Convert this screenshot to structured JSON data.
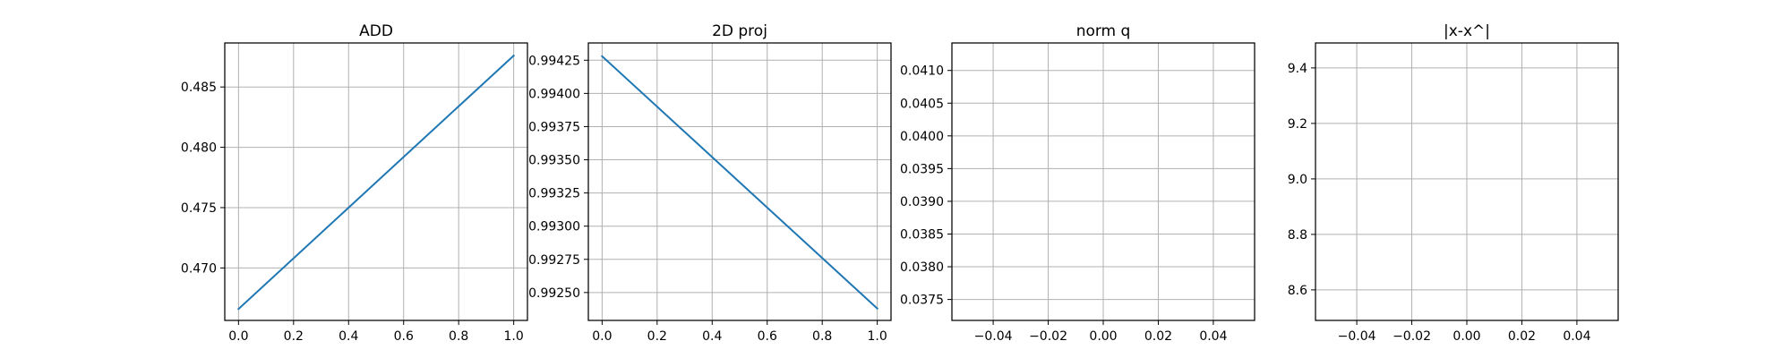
{
  "chart_data": [
    {
      "type": "line",
      "title": "ADD",
      "xlabel": "",
      "ylabel": "",
      "xlim": [
        -0.05,
        1.05
      ],
      "ylim": [
        0.46565,
        0.48865
      ],
      "xticks": [
        "0.0",
        "0.2",
        "0.4",
        "0.6",
        "0.8",
        "1.0"
      ],
      "yticks": [
        "0.470",
        "0.475",
        "0.480",
        "0.485"
      ],
      "grid": true,
      "series": [
        {
          "x": [
            0.0,
            1.0
          ],
          "y": [
            0.4666,
            0.4876
          ],
          "color": "#1f77b4"
        }
      ]
    },
    {
      "type": "line",
      "title": "2D proj",
      "xlabel": "",
      "ylabel": "",
      "xlim": [
        -0.05,
        1.05
      ],
      "ylim": [
        0.99229,
        0.99438
      ],
      "xticks": [
        "0.0",
        "0.2",
        "0.4",
        "0.6",
        "0.8",
        "1.0"
      ],
      "yticks": [
        "0.99250",
        "0.99275",
        "0.99300",
        "0.99325",
        "0.99350",
        "0.99375",
        "0.99400",
        "0.99425"
      ],
      "grid": true,
      "series": [
        {
          "x": [
            0.0,
            1.0
          ],
          "y": [
            0.99428,
            0.99238
          ],
          "color": "#1f77b4"
        }
      ]
    },
    {
      "type": "line",
      "title": "norm q",
      "xlabel": "",
      "ylabel": "",
      "xlim": [
        -0.055,
        0.055
      ],
      "ylim": [
        0.03718,
        0.04142
      ],
      "xticks": [
        "−0.04",
        "−0.02",
        "0.00",
        "0.02",
        "0.04"
      ],
      "yticks": [
        "0.0375",
        "0.0380",
        "0.0385",
        "0.0390",
        "0.0395",
        "0.0400",
        "0.0405",
        "0.0410"
      ],
      "grid": true,
      "series": []
    },
    {
      "type": "line",
      "title": "|x-x^|",
      "xlabel": "",
      "ylabel": "",
      "xlim": [
        -0.055,
        0.055
      ],
      "ylim": [
        8.49,
        9.49
      ],
      "xticks": [
        "−0.04",
        "−0.02",
        "0.00",
        "0.02",
        "0.04"
      ],
      "yticks": [
        "8.6",
        "8.8",
        "9.0",
        "9.2",
        "9.4"
      ],
      "grid": true,
      "series": []
    }
  ]
}
